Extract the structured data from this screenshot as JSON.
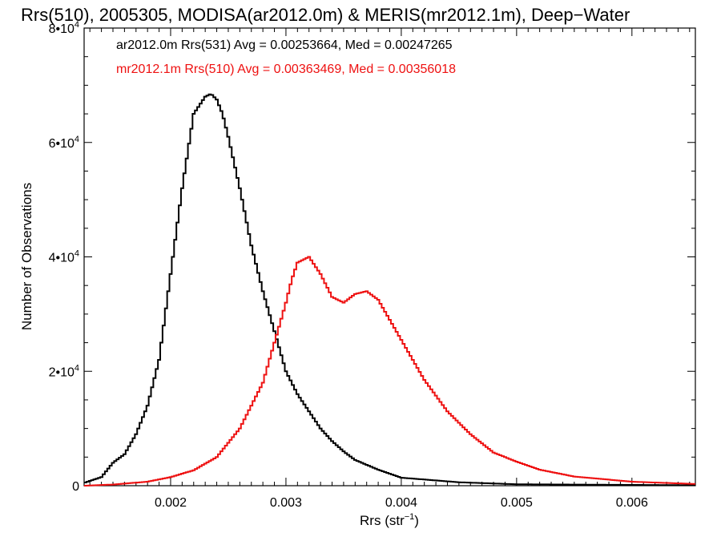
{
  "chart_data": {
    "type": "line",
    "step": true,
    "title": "Rrs(510), 2005305, MODISA(ar2012.0m) & MERIS(mr2012.1m), Deep−Water",
    "xlabel": "Rrs (str",
    "xlabel_sup": "−1",
    "xlabel_close": ")",
    "ylabel": "Number of Observations",
    "xlim": [
      0.00125,
      0.00655
    ],
    "ylim": [
      0,
      80000
    ],
    "grid": false,
    "legend_position": "top-left",
    "x_ticks": [
      {
        "value": 0.002,
        "label": "0.002"
      },
      {
        "value": 0.003,
        "label": "0.003"
      },
      {
        "value": 0.004,
        "label": "0.004"
      },
      {
        "value": 0.005,
        "label": "0.005"
      },
      {
        "value": 0.006,
        "label": "0.006"
      }
    ],
    "y_ticks": [
      {
        "value": 0,
        "mant": "0",
        "exp": ""
      },
      {
        "value": 20000,
        "mant": "2•10",
        "exp": "4"
      },
      {
        "value": 40000,
        "mant": "4•10",
        "exp": "4"
      },
      {
        "value": 60000,
        "mant": "6•10",
        "exp": "4"
      },
      {
        "value": 80000,
        "mant": "8•10",
        "exp": "4"
      }
    ],
    "series": [
      {
        "name": "ar2012.0m Rrs(531) Avg = 0.00253664, Med = 0.00247265",
        "color": "#000000",
        "x": [
          0.00125,
          0.0014,
          0.0015,
          0.0016,
          0.0017,
          0.0018,
          0.0019,
          0.002,
          0.0021,
          0.0022,
          0.0023,
          0.00235,
          0.0024,
          0.00245,
          0.0025,
          0.0026,
          0.0027,
          0.0028,
          0.0029,
          0.003,
          0.0031,
          0.0032,
          0.0033,
          0.0034,
          0.0035,
          0.0036,
          0.0038,
          0.004,
          0.0045,
          0.005,
          0.00655
        ],
        "y": [
          500,
          1500,
          4000,
          5500,
          9000,
          14000,
          22000,
          37000,
          52000,
          65000,
          68000,
          68500,
          67500,
          65000,
          61000,
          52000,
          42000,
          34000,
          27000,
          20000,
          16000,
          13000,
          10000,
          7800,
          6000,
          4500,
          2800,
          1400,
          600,
          250,
          80
        ]
      },
      {
        "name": "mr2012.1m Rrs(510) Avg = 0.00363469, Med = 0.00356018",
        "color": "#ee1111",
        "x": [
          0.00125,
          0.0015,
          0.0018,
          0.002,
          0.0022,
          0.0024,
          0.0026,
          0.0028,
          0.0029,
          0.003,
          0.00305,
          0.0031,
          0.0032,
          0.0033,
          0.0034,
          0.0035,
          0.0036,
          0.0037,
          0.0038,
          0.0039,
          0.004,
          0.0041,
          0.0042,
          0.0044,
          0.0046,
          0.0048,
          0.005,
          0.0052,
          0.0055,
          0.006,
          0.00655
        ],
        "y": [
          0,
          200,
          700,
          1500,
          2700,
          5000,
          10000,
          18000,
          25000,
          32000,
          36000,
          39000,
          40000,
          37000,
          33000,
          32000,
          33500,
          34000,
          32500,
          29000,
          25500,
          22000,
          18500,
          13000,
          9000,
          5800,
          4200,
          2800,
          1600,
          700,
          300
        ]
      }
    ]
  }
}
